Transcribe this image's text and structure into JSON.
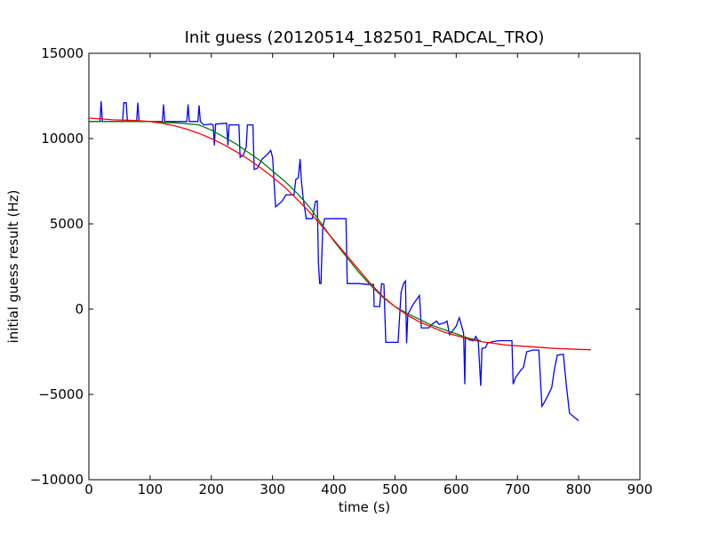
{
  "chart_data": {
    "type": "line",
    "title": "Init guess (20120514_182501_RADCAL_TRO)",
    "xlabel": "time (s)",
    "ylabel": "initial guess result (Hz)",
    "xlim": [
      0,
      900
    ],
    "ylim": [
      -10000,
      15000
    ],
    "xticks": [
      0,
      100,
      200,
      300,
      400,
      500,
      600,
      700,
      800,
      900
    ],
    "yticks": [
      -10000,
      -5000,
      0,
      5000,
      10000,
      15000
    ],
    "xtick_labels": [
      "0",
      "100",
      "200",
      "300",
      "400",
      "500",
      "600",
      "700",
      "800",
      "900"
    ],
    "ytick_labels": [
      "−10000",
      "−5000",
      "0",
      "5000",
      "10000",
      "15000"
    ],
    "grid": false,
    "legend": false,
    "series": [
      {
        "color": "#0000ff",
        "points": [
          [
            0,
            11000
          ],
          [
            18,
            11000
          ],
          [
            20,
            12200
          ],
          [
            22,
            11000
          ],
          [
            55,
            11000
          ],
          [
            57,
            12100
          ],
          [
            61,
            12100
          ],
          [
            63,
            11000
          ],
          [
            78,
            11000
          ],
          [
            80,
            12100
          ],
          [
            82,
            11000
          ],
          [
            120,
            11000
          ],
          [
            122,
            12000
          ],
          [
            124,
            11000
          ],
          [
            160,
            11000
          ],
          [
            162,
            12000
          ],
          [
            164,
            11000
          ],
          [
            178,
            11000
          ],
          [
            180,
            11950
          ],
          [
            182,
            11000
          ],
          [
            188,
            10800
          ],
          [
            200,
            10850
          ],
          [
            203,
            10800
          ],
          [
            205,
            9600
          ],
          [
            207,
            10850
          ],
          [
            225,
            10900
          ],
          [
            227,
            9600
          ],
          [
            229,
            10800
          ],
          [
            245,
            10800
          ],
          [
            247,
            8900
          ],
          [
            252,
            9000
          ],
          [
            257,
            9500
          ],
          [
            259,
            10800
          ],
          [
            268,
            10800
          ],
          [
            270,
            8200
          ],
          [
            275,
            8250
          ],
          [
            283,
            8800
          ],
          [
            292,
            9100
          ],
          [
            297,
            9300
          ],
          [
            300,
            8900
          ],
          [
            305,
            6000
          ],
          [
            315,
            6300
          ],
          [
            322,
            6700
          ],
          [
            335,
            6700
          ],
          [
            338,
            7600
          ],
          [
            342,
            7700
          ],
          [
            345,
            8800
          ],
          [
            347,
            7600
          ],
          [
            350,
            6500
          ],
          [
            355,
            5300
          ],
          [
            365,
            5300
          ],
          [
            370,
            6300
          ],
          [
            373,
            6350
          ],
          [
            375,
            2700
          ],
          [
            377,
            1500
          ],
          [
            379,
            1500
          ],
          [
            382,
            4800
          ],
          [
            385,
            5300
          ],
          [
            405,
            5300
          ],
          [
            415,
            5300
          ],
          [
            420,
            5300
          ],
          [
            422,
            1500
          ],
          [
            440,
            1500
          ],
          [
            455,
            1450
          ],
          [
            465,
            1450
          ],
          [
            466,
            150
          ],
          [
            475,
            150
          ],
          [
            478,
            1500
          ],
          [
            482,
            1450
          ],
          [
            485,
            -1950
          ],
          [
            505,
            -1950
          ],
          [
            510,
            1000
          ],
          [
            514,
            1500
          ],
          [
            517,
            1650
          ],
          [
            519,
            -2000
          ],
          [
            521,
            -300
          ],
          [
            530,
            300
          ],
          [
            540,
            800
          ],
          [
            543,
            -1100
          ],
          [
            555,
            -1100
          ],
          [
            560,
            -900
          ],
          [
            568,
            -700
          ],
          [
            572,
            -900
          ],
          [
            581,
            -800
          ],
          [
            585,
            -700
          ],
          [
            589,
            -1500
          ],
          [
            600,
            -1000
          ],
          [
            605,
            -500
          ],
          [
            612,
            -1400
          ],
          [
            614,
            -4400
          ],
          [
            615,
            -1700
          ],
          [
            618,
            -1700
          ],
          [
            621,
            -1800
          ],
          [
            628,
            -1850
          ],
          [
            632,
            -1600
          ],
          [
            636,
            -1850
          ],
          [
            640,
            -4500
          ],
          [
            642,
            -2300
          ],
          [
            648,
            -2250
          ],
          [
            651,
            -2000
          ],
          [
            660,
            -1900
          ],
          [
            670,
            -1850
          ],
          [
            680,
            -1850
          ],
          [
            691,
            -1850
          ],
          [
            693,
            -4400
          ],
          [
            697,
            -4000
          ],
          [
            705,
            -3600
          ],
          [
            710,
            -3400
          ],
          [
            715,
            -2500
          ],
          [
            725,
            -2400
          ],
          [
            735,
            -2400
          ],
          [
            740,
            -5700
          ],
          [
            745,
            -5400
          ],
          [
            752,
            -4900
          ],
          [
            756,
            -4600
          ],
          [
            760,
            -3600
          ],
          [
            765,
            -2700
          ],
          [
            775,
            -2650
          ],
          [
            780,
            -4500
          ],
          [
            785,
            -6100
          ],
          [
            795,
            -6400
          ],
          [
            800,
            -6550
          ]
        ]
      },
      {
        "color": "#008000",
        "points": [
          [
            0,
            11000
          ],
          [
            50,
            11000
          ],
          [
            100,
            11000
          ],
          [
            150,
            10900
          ],
          [
            180,
            10800
          ],
          [
            200,
            10500
          ],
          [
            220,
            10100
          ],
          [
            240,
            9700
          ],
          [
            260,
            9200
          ],
          [
            280,
            8700
          ],
          [
            300,
            8100
          ],
          [
            320,
            7500
          ],
          [
            340,
            6800
          ],
          [
            360,
            6000
          ],
          [
            380,
            5000
          ],
          [
            400,
            4000
          ],
          [
            420,
            3100
          ],
          [
            440,
            2200
          ],
          [
            460,
            1400
          ],
          [
            480,
            700
          ],
          [
            500,
            150
          ],
          [
            520,
            -250
          ],
          [
            540,
            -600
          ],
          [
            560,
            -950
          ],
          [
            580,
            -1200
          ],
          [
            600,
            -1450
          ],
          [
            620,
            -1700
          ],
          [
            640,
            -1850
          ]
        ]
      },
      {
        "color": "#ff0000",
        "points": [
          [
            0,
            11200
          ],
          [
            20,
            11150
          ],
          [
            40,
            11100
          ],
          [
            60,
            11080
          ],
          [
            80,
            11050
          ],
          [
            100,
            11000
          ],
          [
            120,
            10900
          ],
          [
            140,
            10750
          ],
          [
            160,
            10550
          ],
          [
            180,
            10300
          ],
          [
            200,
            10000
          ],
          [
            220,
            9650
          ],
          [
            240,
            9250
          ],
          [
            260,
            8800
          ],
          [
            280,
            8300
          ],
          [
            300,
            7750
          ],
          [
            320,
            7150
          ],
          [
            340,
            6450
          ],
          [
            360,
            5700
          ],
          [
            380,
            4900
          ],
          [
            400,
            4050
          ],
          [
            420,
            3200
          ],
          [
            440,
            2350
          ],
          [
            460,
            1500
          ],
          [
            480,
            750
          ],
          [
            500,
            150
          ],
          [
            520,
            -350
          ],
          [
            540,
            -750
          ],
          [
            560,
            -1050
          ],
          [
            580,
            -1350
          ],
          [
            600,
            -1550
          ],
          [
            620,
            -1750
          ],
          [
            640,
            -1900
          ],
          [
            660,
            -2000
          ],
          [
            680,
            -2100
          ],
          [
            700,
            -2150
          ],
          [
            720,
            -2200
          ],
          [
            740,
            -2250
          ],
          [
            760,
            -2300
          ],
          [
            780,
            -2330
          ],
          [
            800,
            -2360
          ],
          [
            820,
            -2380
          ]
        ]
      }
    ]
  }
}
